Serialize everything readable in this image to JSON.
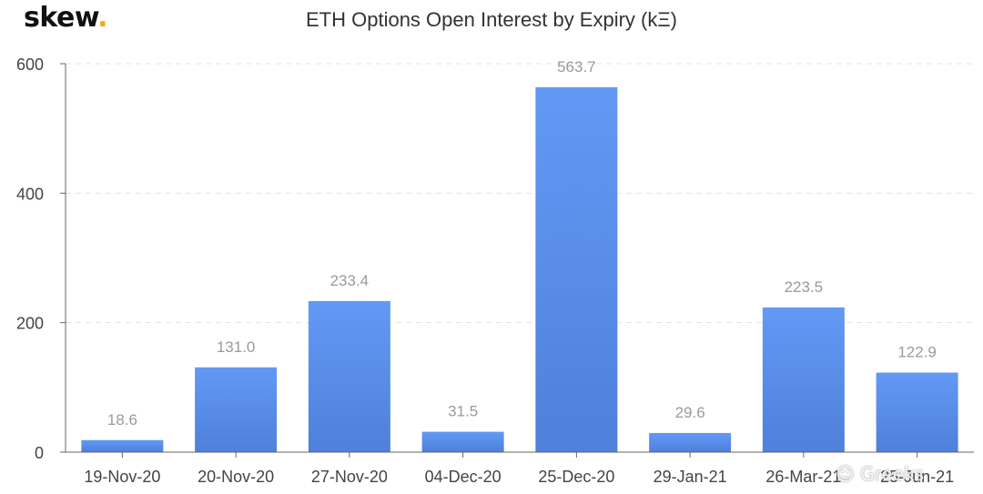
{
  "logo": {
    "text": "skew",
    "dot": ".",
    "accent_color": "#f5a623"
  },
  "chart_data": {
    "type": "bar",
    "title": "ETH Options Open Interest by Expiry (kΞ)",
    "xlabel": "",
    "ylabel": "",
    "categories": [
      "19-Nov-20",
      "20-Nov-20",
      "27-Nov-20",
      "04-Dec-20",
      "25-Dec-20",
      "29-Jan-21",
      "26-Mar-21",
      "25-Jun-21"
    ],
    "values": [
      18.6,
      131.0,
      233.4,
      31.5,
      563.7,
      29.6,
      223.5,
      122.9
    ],
    "value_labels": [
      "18.6",
      "131.0",
      "233.4",
      "31.5",
      "563.7",
      "29.6",
      "223.5",
      "122.9"
    ],
    "ylim": [
      0,
      600
    ],
    "yticks": [
      0,
      200,
      400,
      600
    ],
    "grid": true,
    "legend": "none",
    "bar_color_top": "#6299f5",
    "bar_color_bottom": "#4f80da",
    "label_color": "#9a9a9a"
  },
  "watermark": {
    "text": "Greeks"
  }
}
